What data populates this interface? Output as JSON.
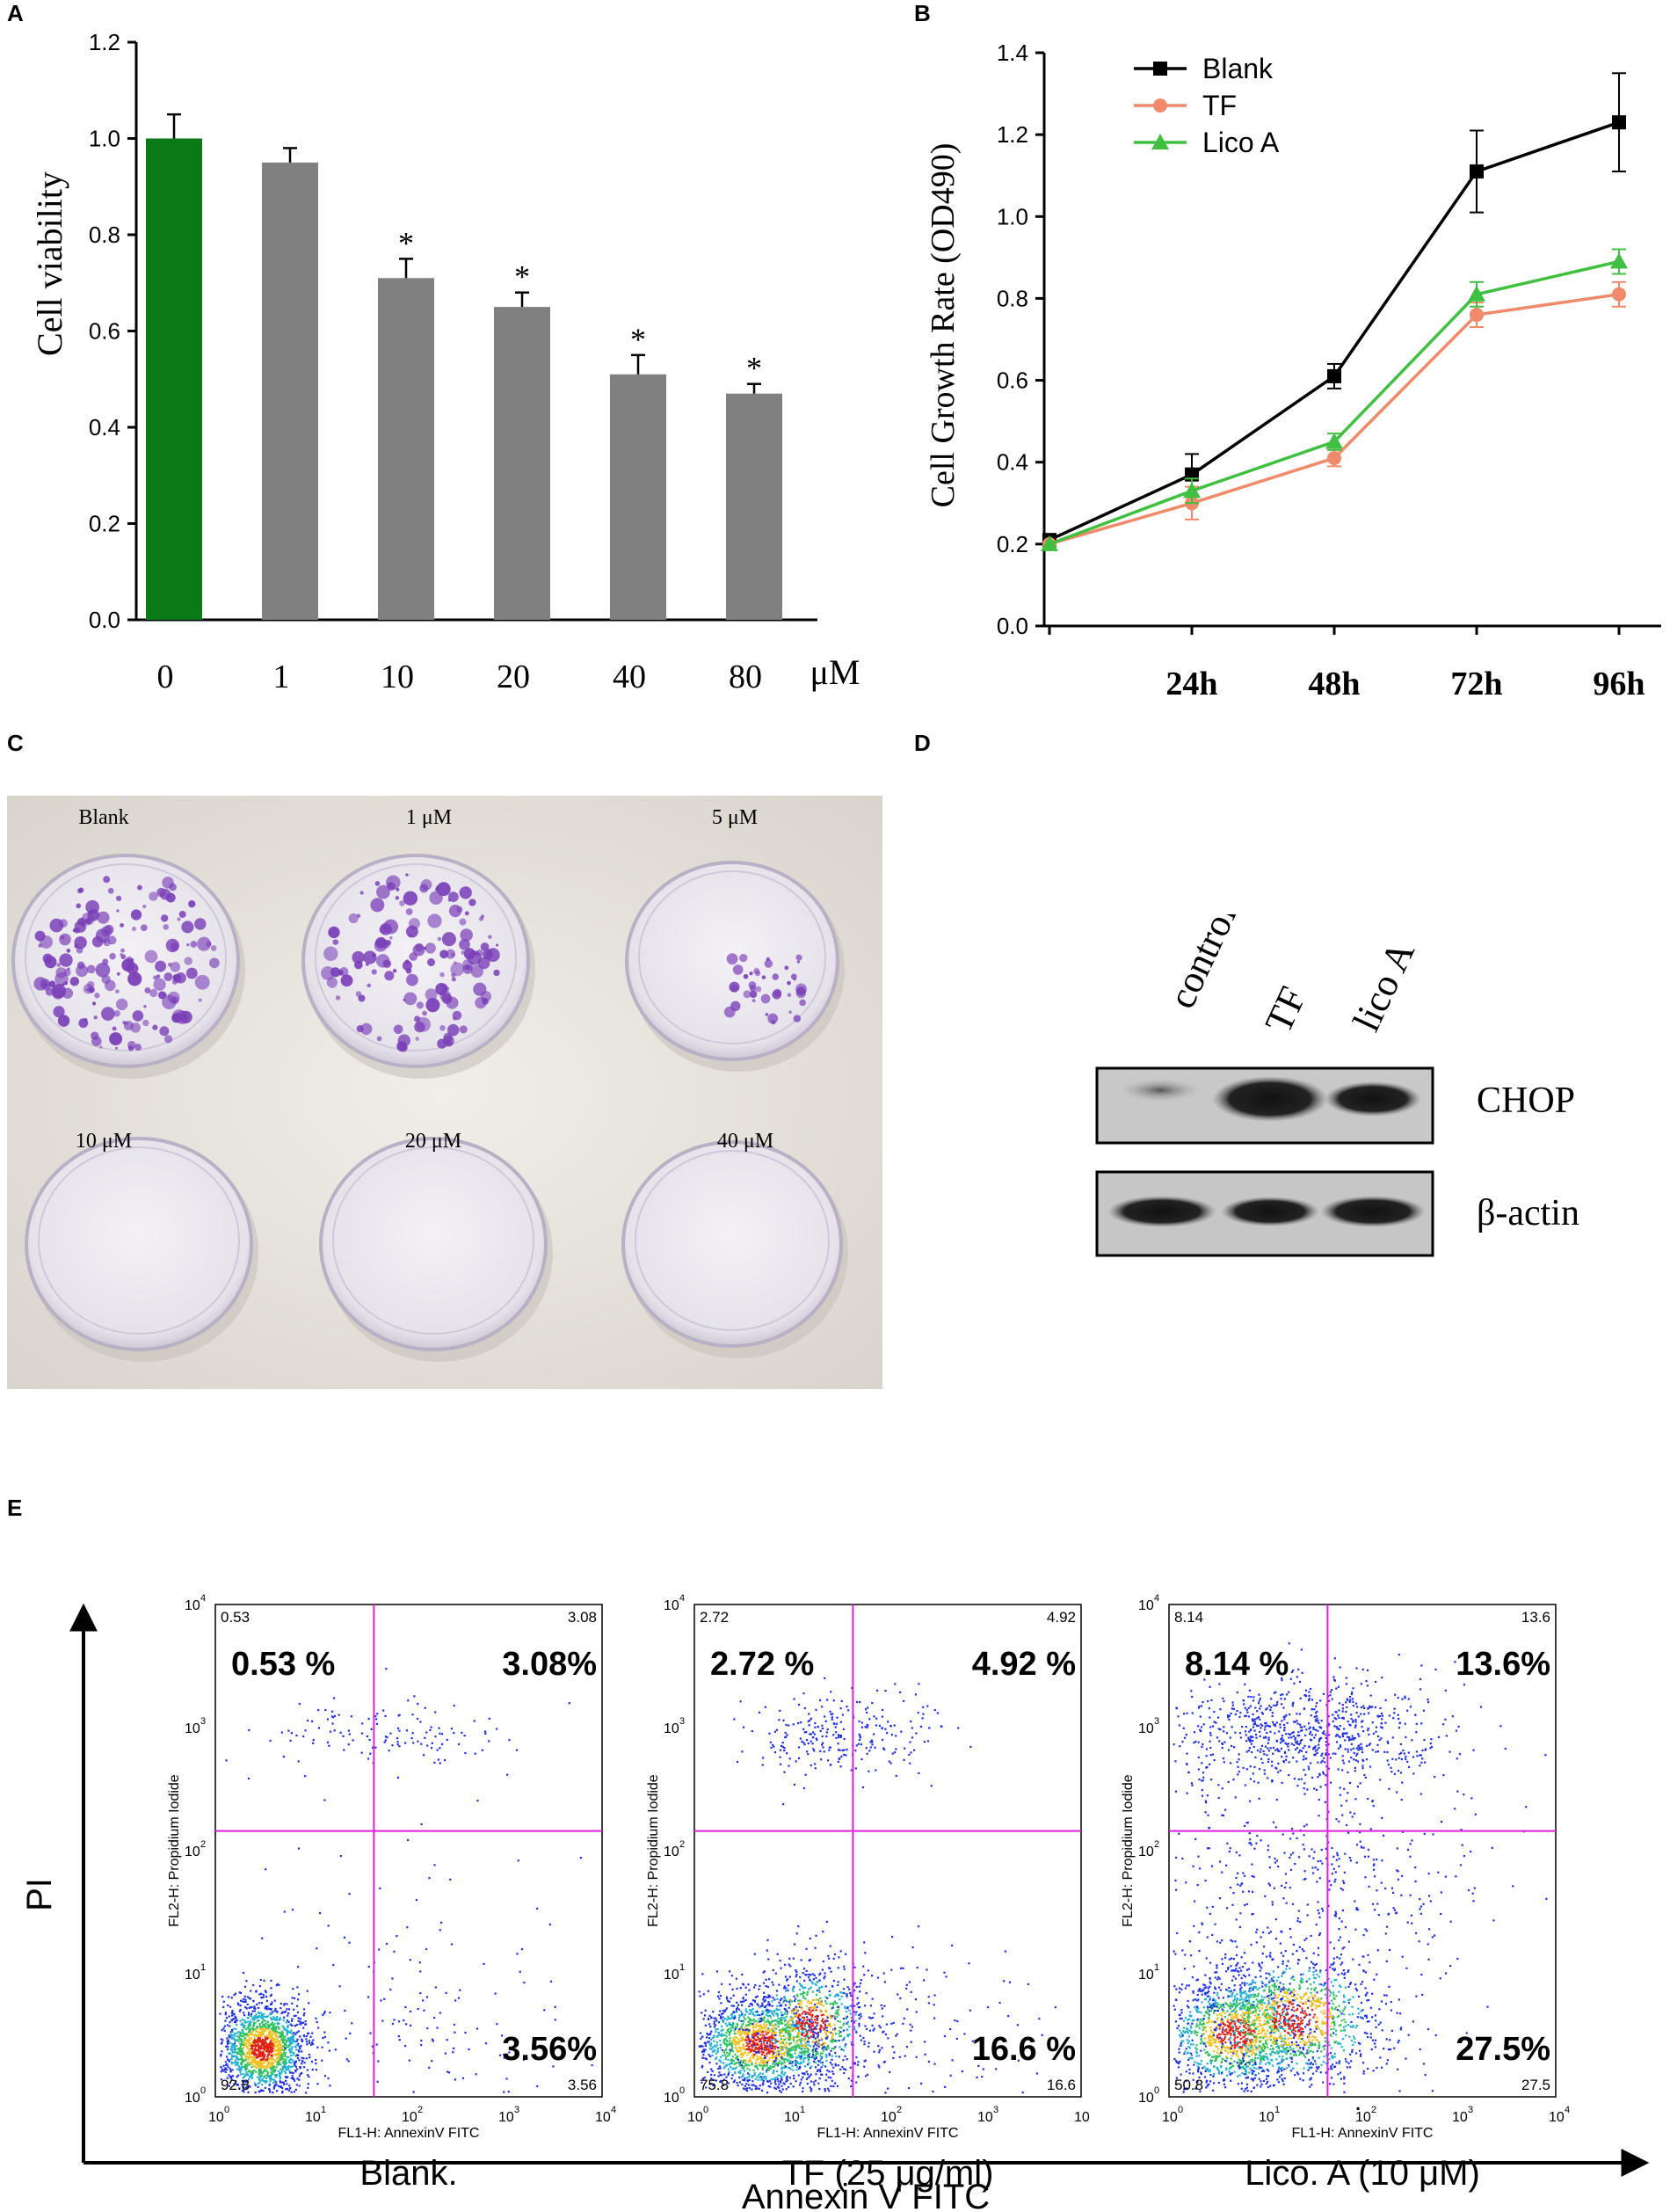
{
  "panels": {
    "a": "A",
    "b": "B",
    "c": "C",
    "d": "D",
    "e": "E"
  },
  "chart_data": [
    {
      "type": "bar",
      "title": "",
      "xlabel": "",
      "ylabel": "Cell viability",
      "unit_label": "μM",
      "categories": [
        "0",
        "1",
        "10",
        "20",
        "40",
        "80"
      ],
      "values": [
        1.0,
        0.95,
        0.71,
        0.65,
        0.51,
        0.47
      ],
      "errors": [
        0.05,
        0.03,
        0.04,
        0.03,
        0.04,
        0.02
      ],
      "significance": [
        "",
        "",
        "*",
        "*",
        "*",
        "*"
      ],
      "bar_colors": [
        "#0a7a16",
        "#808080",
        "#808080",
        "#808080",
        "#808080",
        "#808080"
      ],
      "ylim": [
        0,
        1.2
      ],
      "yticks": [
        "0.0",
        "0.2",
        "0.4",
        "0.6",
        "0.8",
        "1.0",
        "1.2"
      ]
    },
    {
      "type": "line",
      "title": "",
      "xlabel": "",
      "ylabel": "Cell Growth Rate (OD490)",
      "x": [
        0,
        1,
        2,
        3,
        4
      ],
      "xticklabels": [
        "24h",
        "48h",
        "72h",
        "96h"
      ],
      "ylim": [
        0,
        1.4
      ],
      "yticks": [
        "0.0",
        "0.2",
        "0.4",
        "0.6",
        "0.8",
        "1.0",
        "1.2",
        "1.4"
      ],
      "legend_position": "top-left",
      "series": [
        {
          "name": "Blank",
          "color": "#000000",
          "marker": "square",
          "values": [
            0.21,
            0.37,
            0.61,
            1.11,
            1.23
          ],
          "errors": [
            0,
            0.05,
            0.03,
            0.1,
            0.12
          ]
        },
        {
          "name": "TF",
          "color": "#f08a6a",
          "marker": "circle",
          "values": [
            0.2,
            0.3,
            0.41,
            0.76,
            0.81
          ],
          "errors": [
            0,
            0.04,
            0.02,
            0.03,
            0.03
          ]
        },
        {
          "name": "Lico A",
          "color": "#40c040",
          "marker": "triangle",
          "values": [
            0.2,
            0.33,
            0.45,
            0.81,
            0.89
          ],
          "errors": [
            0,
            0.03,
            0.02,
            0.03,
            0.03
          ]
        }
      ]
    }
  ],
  "colony": {
    "labels": [
      "Blank",
      "1 μM",
      "5 μM",
      "10 μM",
      "20 μM",
      "40 μM"
    ],
    "stain_color": "#7a3fb8"
  },
  "western": {
    "lanes": [
      "control",
      "TF",
      "lico A"
    ],
    "bands": [
      "CHOP",
      "β-actin"
    ]
  },
  "flow": {
    "y_axis": "PI",
    "x_axis": "Annexin V FITC",
    "tick_x": [
      "10",
      "10",
      "10",
      "10",
      "10"
    ],
    "tick_exp": [
      "0",
      "1",
      "2",
      "3",
      "4"
    ],
    "plot_ylabel": "FL2-H: Propidium Iodide",
    "plot_xlabel": "FL1-H: AnnexinV FITC",
    "plots": [
      {
        "name": "Blank.",
        "ul": "0.53",
        "ur": "3.08",
        "ll": "92.8",
        "lr": "3.56",
        "ul_big": "0.53 %",
        "ur_big": "3.08%",
        "lr_big": "3.56%",
        "last_tick": "4"
      },
      {
        "name": "TF (25 μg/ml)",
        "ul": "2.72",
        "ur": "4.92",
        "ll": "75.8",
        "lr": "16.6",
        "ul_big": "2.72 %",
        "ur_big": "4.92 %",
        "lr_big": "16.6 %",
        "last_tick": ""
      },
      {
        "name": "Lico. A  (10 μM)",
        "ul": "8.14",
        "ur": "13.6",
        "ll": "50.8",
        "lr": "27.5",
        "ul_big": "8.14 %",
        "ur_big": "13.6%",
        "lr_big": "27.5%",
        "last_tick": "4"
      }
    ],
    "dot_mark": "."
  }
}
